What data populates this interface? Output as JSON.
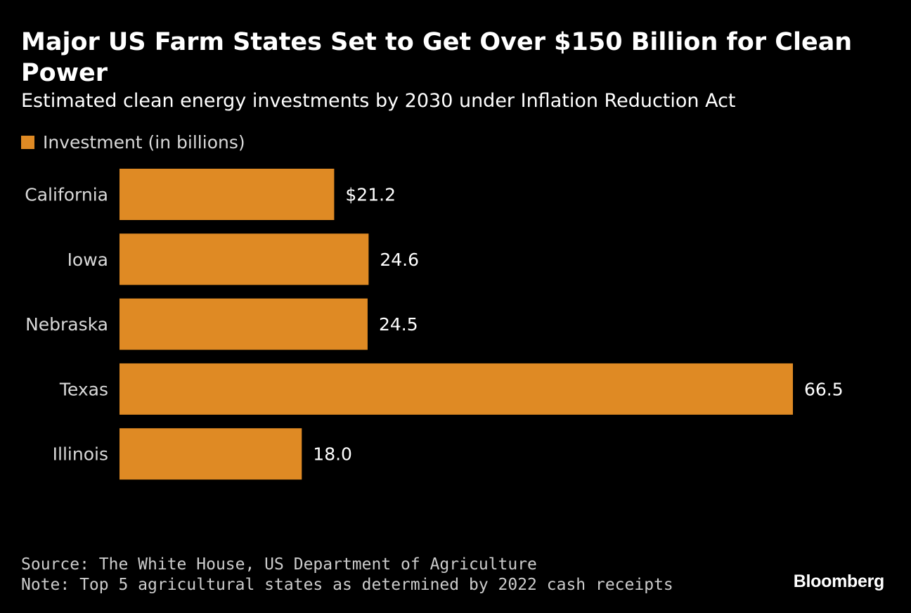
{
  "header": {
    "title": "Major US Farm States Set to Get Over $150 Billion for Clean Power",
    "subtitle": "Estimated clean energy investments by 2030 under Inflation Reduction Act"
  },
  "legend": {
    "label": "Investment (in billions)",
    "color": "#df8a24"
  },
  "chart_data": {
    "type": "bar",
    "orientation": "horizontal",
    "title": "Major US Farm States Set to Get Over $150 Billion for Clean Power",
    "subtitle": "Estimated clean energy investments by 2030 under Inflation Reduction Act",
    "categories": [
      "California",
      "Iowa",
      "Nebraska",
      "Texas",
      "Illinois"
    ],
    "series": [
      {
        "name": "Investment (in billions)",
        "values": [
          21.2,
          24.6,
          24.5,
          66.5,
          18.0
        ],
        "color": "#df8a24"
      }
    ],
    "value_labels": [
      "$21.2",
      "24.6",
      "24.5",
      "66.5",
      "18.0"
    ],
    "xlabel": "",
    "ylabel": "",
    "xlim": [
      0,
      66.5
    ],
    "grid": false,
    "legend_position": "top-left"
  },
  "footer": {
    "source": "Source: The White House, US Department of Agriculture",
    "note": "Note: Top 5 agricultural states as determined by 2022 cash receipts",
    "brand": "Bloomberg"
  }
}
